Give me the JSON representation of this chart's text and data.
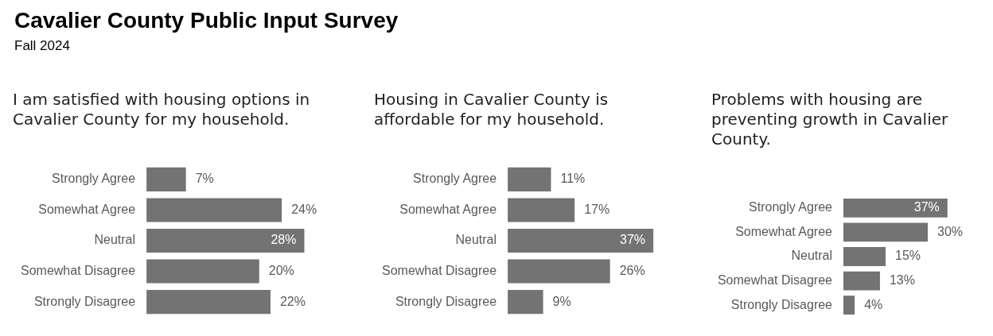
{
  "chart_data": [
    {
      "type": "bar",
      "orientation": "horizontal",
      "title": "I am satisfied with housing options in Cavalier County for my household.",
      "annotations": [
        "Cavalier County Public Input Survey",
        "Fall 2024"
      ],
      "categories": [
        "Strongly Agree",
        "Somewhat Agree",
        "Neutral",
        "Somewhat Disagree",
        "Strongly Disagree"
      ],
      "values": [
        7,
        24,
        28,
        20,
        22
      ],
      "value_labels": [
        "7%",
        "24%",
        "28%",
        "20%",
        "22%"
      ],
      "color": "#737373",
      "tick_labels": "y"
    },
    {
      "type": "bar",
      "orientation": "horizontal",
      "title": "Housing in Cavalier County is affordable for my household.",
      "categories": [
        "Strongly Agree",
        "Somewhat Agree",
        "Neutral",
        "Somewhat Disagree",
        "Strongly Disagree"
      ],
      "values": [
        11,
        17,
        37,
        26,
        9
      ],
      "value_labels": [
        "11%",
        "17%",
        "37%",
        "26%",
        "9%"
      ],
      "color": "#737373",
      "tick_labels": "y"
    },
    {
      "type": "bar",
      "orientation": "horizontal",
      "title": "Problems with housing are preventing growth in Cavalier County.",
      "categories": [
        "Strongly Agree",
        "Somewhat Agree",
        "Neutral",
        "Somewhat Disagree",
        "Strongly Disagree"
      ],
      "values": [
        37,
        30,
        15,
        13,
        4
      ],
      "value_labels": [
        "37%",
        "30%",
        "15%",
        "13%",
        "4%"
      ],
      "color": "#737373",
      "tick_labels": "y"
    }
  ]
}
